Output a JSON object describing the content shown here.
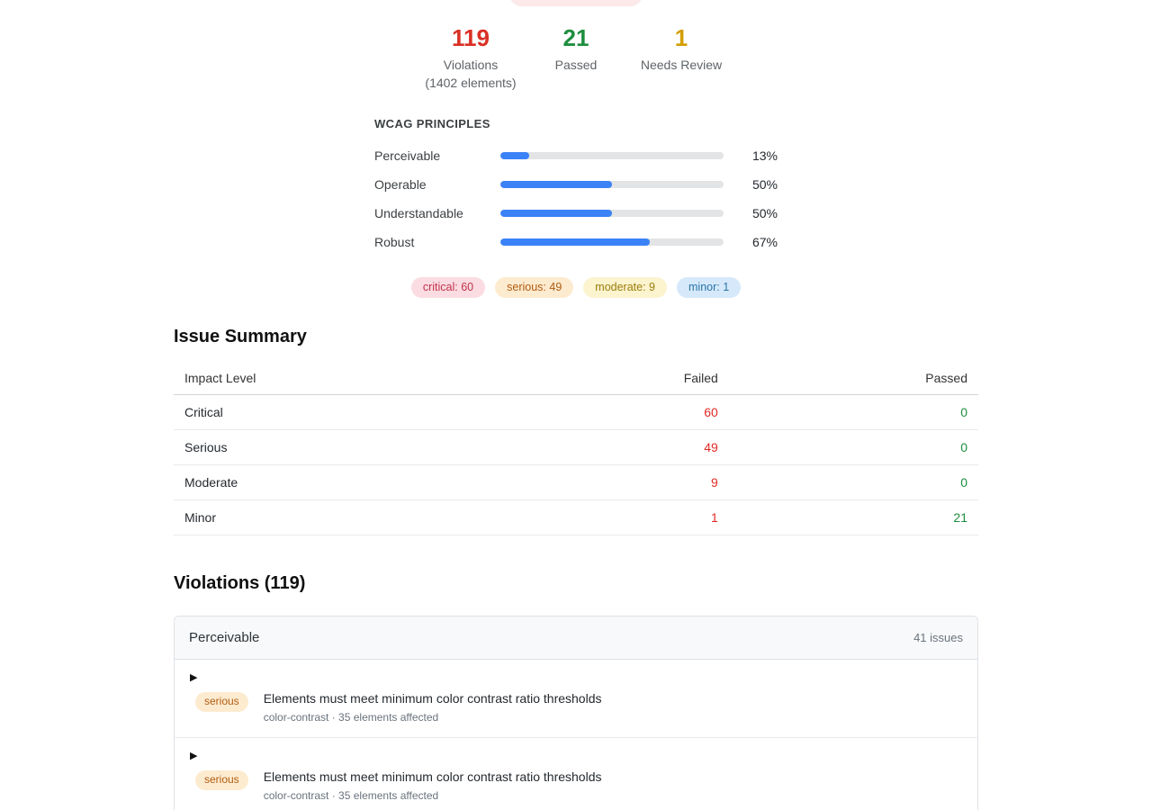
{
  "summary": {
    "top_pill_color": "#fde9e9",
    "stats": [
      {
        "value": "119",
        "label": "Violations",
        "sublabel": "(1402 elements)",
        "color": "#d93025"
      },
      {
        "value": "21",
        "label": "Passed",
        "sublabel": "",
        "color": "#1e8e3e"
      },
      {
        "value": "1",
        "label": "Needs Review",
        "sublabel": "",
        "color": "#d39e00"
      }
    ],
    "wcag": {
      "title": "WCAG PRINCIPLES",
      "bar_color": "#3b82f6",
      "track_color": "#e3e4e6",
      "principles": [
        {
          "label": "Perceivable",
          "percent": 13,
          "percent_label": "13%"
        },
        {
          "label": "Operable",
          "percent": 50,
          "percent_label": "50%"
        },
        {
          "label": "Understandable",
          "percent": 50,
          "percent_label": "50%"
        },
        {
          "label": "Robust",
          "percent": 67,
          "percent_label": "67%"
        }
      ]
    },
    "impact_badges": [
      {
        "label": "critical: 60",
        "bg": "#fadce2",
        "color": "#c2334d"
      },
      {
        "label": "serious: 49",
        "bg": "#fdebd0",
        "color": "#b05c10"
      },
      {
        "label": "moderate: 9",
        "bg": "#fcf3cf",
        "color": "#9a7d0a"
      },
      {
        "label": "minor: 1",
        "bg": "#d6e9fb",
        "color": "#2874a6"
      }
    ]
  },
  "issue_summary": {
    "title": "Issue Summary",
    "columns": {
      "level": "Impact Level",
      "failed": "Failed",
      "passed": "Passed"
    },
    "failed_color": "#e02b27",
    "passed_color": "#1e8e3e",
    "rows": [
      {
        "level": "Critical",
        "failed": "60",
        "passed": "0"
      },
      {
        "level": "Serious",
        "failed": "49",
        "passed": "0"
      },
      {
        "level": "Moderate",
        "failed": "9",
        "passed": "0"
      },
      {
        "level": "Minor",
        "failed": "1",
        "passed": "21"
      }
    ]
  },
  "violations": {
    "title": "Violations (119)",
    "group": {
      "name": "Perceivable",
      "issue_count": "41 issues",
      "caret": "▶",
      "impact_bg": "#fdebd0",
      "impact_color": "#b05c10",
      "issues": [
        {
          "impact": "serious",
          "title": "Elements must meet minimum color contrast ratio thresholds",
          "meta": "color-contrast · 35 elements affected"
        },
        {
          "impact": "serious",
          "title": "Elements must meet minimum color contrast ratio thresholds",
          "meta": "color-contrast · 35 elements affected"
        }
      ]
    }
  }
}
